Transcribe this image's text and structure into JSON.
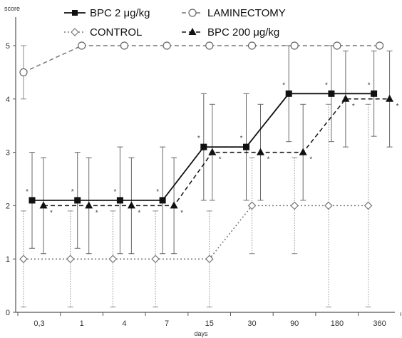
{
  "chart_data": {
    "type": "line",
    "ylabel": "score",
    "xlabel": "days",
    "ylim": [
      0,
      5
    ],
    "yticks": [
      "0",
      "1",
      "2",
      "3",
      "4",
      "5"
    ],
    "categories": [
      "0,3",
      "1",
      "4",
      "7",
      "15",
      "30",
      "90",
      "180",
      "360"
    ],
    "grid": false,
    "legend_position": "top",
    "series": [
      {
        "name": "BPC 2 μg/kg",
        "values": [
          2.1,
          2.1,
          2.1,
          2.1,
          3.1,
          3.1,
          4.1,
          4.1,
          4.1
        ],
        "errors": [
          0.9,
          0.9,
          1.0,
          1.0,
          1.0,
          1.0,
          0.9,
          0.9,
          0.8
        ],
        "significant": [
          true,
          true,
          true,
          true,
          true,
          true,
          true,
          true,
          true
        ],
        "style": "solid",
        "marker": "square",
        "color": "#111111"
      },
      {
        "name": "BPC 200 μg/kg",
        "values": [
          2.0,
          2.0,
          2.0,
          2.0,
          3.0,
          3.0,
          3.0,
          4.0,
          4.0
        ],
        "errors": [
          0.9,
          0.9,
          0.9,
          0.9,
          0.9,
          0.9,
          0.9,
          0.9,
          0.9
        ],
        "significant": [
          true,
          true,
          true,
          true,
          true,
          true,
          true,
          true,
          true
        ],
        "style": "dashed",
        "marker": "triangle",
        "color": "#111111"
      },
      {
        "name": "LAMINECTOMY",
        "values": [
          4.5,
          5,
          5,
          5,
          5,
          5,
          5,
          5,
          5
        ],
        "errors": [
          0.5,
          0,
          0,
          0,
          0,
          0,
          0,
          0,
          0
        ],
        "style": "dashed",
        "marker": "circle",
        "color": "#777777"
      },
      {
        "name": "CONTROL",
        "values": [
          1,
          1,
          1,
          1,
          1,
          2,
          2,
          2,
          2
        ],
        "errors": [
          0.9,
          0.9,
          0.9,
          0.9,
          0.9,
          0.9,
          0.9,
          1.9,
          1.9
        ],
        "style": "dotted",
        "marker": "diamond",
        "color": "#777777"
      }
    ],
    "significance_marker": "*"
  }
}
